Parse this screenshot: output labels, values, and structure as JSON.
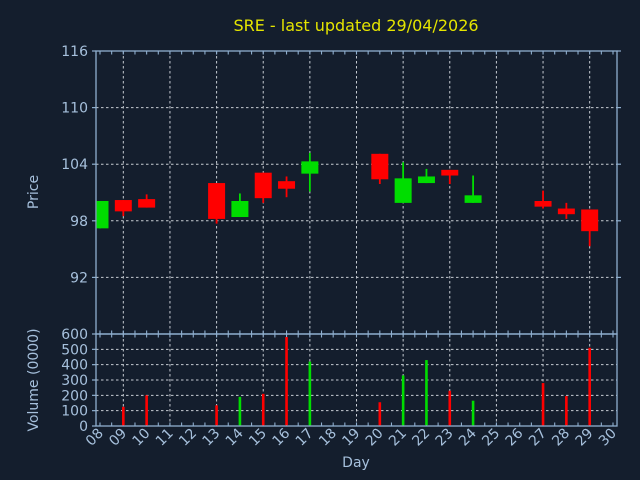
{
  "title": {
    "text": "SRE - last updated 29/04/2026"
  },
  "colors": {
    "background": "#141e2d",
    "axis": "#8fafcf",
    "label": "#a6c0dc",
    "grid": "#c6cbd2",
    "title": "#e5e500",
    "up": "#00dd00",
    "down": "#ff0000"
  },
  "price_panel": {
    "ylabel": "Price"
  },
  "volume_panel": {
    "ylabel": "Volume (0000)"
  },
  "xaxis": {
    "label": "Day",
    "days": [
      "08",
      "09",
      "10",
      "11",
      "12",
      "13",
      "14",
      "15",
      "16",
      "17",
      "18",
      "19",
      "20",
      "21",
      "22",
      "23",
      "24",
      "25",
      "26",
      "27",
      "28",
      "29",
      "30"
    ]
  },
  "chart_data": [
    {
      "type": "candlestick",
      "title": "SRE - last updated 29/04/2026",
      "xlabel": "Day",
      "ylabel": "Price",
      "ylim": [
        86,
        116
      ],
      "yticks": [
        92,
        98,
        104,
        110,
        116
      ],
      "grid": "dashed, vertical gridlines on odd days",
      "ohlc": [
        {
          "day": 8,
          "open": 97.2,
          "high": 100.1,
          "low": 97.2,
          "close": 100.1,
          "dir": "up"
        },
        {
          "day": 9,
          "open": 100.2,
          "high": 100.2,
          "low": 98.5,
          "close": 99.0,
          "dir": "down"
        },
        {
          "day": 10,
          "open": 100.3,
          "high": 100.8,
          "low": 99.4,
          "close": 99.4,
          "dir": "down"
        },
        {
          "day": 13,
          "open": 102.0,
          "high": 102.0,
          "low": 97.7,
          "close": 98.2,
          "dir": "down"
        },
        {
          "day": 14,
          "open": 98.4,
          "high": 100.9,
          "low": 98.4,
          "close": 100.1,
          "dir": "up"
        },
        {
          "day": 15,
          "open": 103.1,
          "high": 103.1,
          "low": 99.9,
          "close": 100.4,
          "dir": "down"
        },
        {
          "day": 16,
          "open": 102.2,
          "high": 102.7,
          "low": 100.5,
          "close": 101.4,
          "dir": "down"
        },
        {
          "day": 17,
          "open": 103.0,
          "high": 105.2,
          "low": 101.1,
          "close": 104.3,
          "dir": "up"
        },
        {
          "day": 20,
          "open": 105.1,
          "high": 105.1,
          "low": 101.9,
          "close": 102.4,
          "dir": "down"
        },
        {
          "day": 21,
          "open": 99.9,
          "high": 104.2,
          "low": 99.9,
          "close": 102.5,
          "dir": "up"
        },
        {
          "day": 22,
          "open": 102.0,
          "high": 103.5,
          "low": 102.0,
          "close": 102.7,
          "dir": "up"
        },
        {
          "day": 23,
          "open": 103.4,
          "high": 103.4,
          "low": 101.9,
          "close": 102.8,
          "dir": "down"
        },
        {
          "day": 24,
          "open": 99.9,
          "high": 102.8,
          "low": 99.9,
          "close": 100.7,
          "dir": "up"
        },
        {
          "day": 27,
          "open": 100.1,
          "high": 101.2,
          "low": 99.3,
          "close": 99.5,
          "dir": "down"
        },
        {
          "day": 28,
          "open": 99.3,
          "high": 99.9,
          "low": 98.2,
          "close": 98.7,
          "dir": "down"
        },
        {
          "day": 29,
          "open": 99.2,
          "high": 99.2,
          "low": 95.3,
          "close": 96.9,
          "dir": "down"
        }
      ]
    },
    {
      "type": "bar",
      "ylabel": "Volume (0000)",
      "ylim": [
        0,
        600
      ],
      "yticks": [
        0,
        100,
        200,
        300,
        400,
        500,
        600
      ],
      "bars": [
        {
          "day": 9,
          "value": 125,
          "dir": "down"
        },
        {
          "day": 10,
          "value": 200,
          "dir": "down"
        },
        {
          "day": 13,
          "value": 135,
          "dir": "down"
        },
        {
          "day": 14,
          "value": 190,
          "dir": "up"
        },
        {
          "day": 15,
          "value": 210,
          "dir": "down"
        },
        {
          "day": 16,
          "value": 580,
          "dir": "down"
        },
        {
          "day": 17,
          "value": 420,
          "dir": "up"
        },
        {
          "day": 20,
          "value": 155,
          "dir": "down"
        },
        {
          "day": 21,
          "value": 330,
          "dir": "up"
        },
        {
          "day": 22,
          "value": 430,
          "dir": "up"
        },
        {
          "day": 23,
          "value": 230,
          "dir": "down"
        },
        {
          "day": 24,
          "value": 165,
          "dir": "up"
        },
        {
          "day": 27,
          "value": 280,
          "dir": "down"
        },
        {
          "day": 28,
          "value": 195,
          "dir": "down"
        },
        {
          "day": 29,
          "value": 510,
          "dir": "down"
        }
      ]
    }
  ]
}
